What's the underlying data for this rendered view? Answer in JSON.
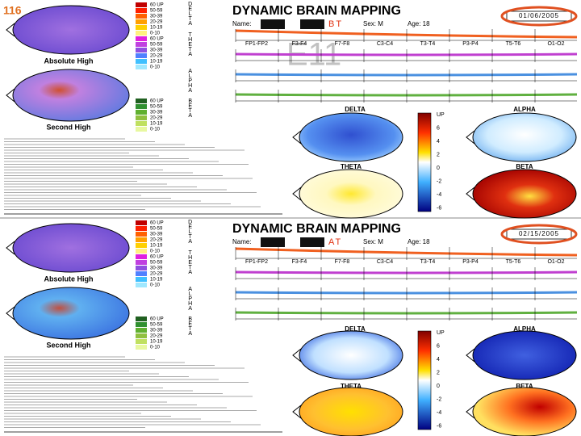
{
  "slide_label": "116",
  "watermark": "E11",
  "panels": [
    {
      "title": "DYNAMIC BRAIN MAPPING",
      "name_label": "Name:",
      "tag": "BT",
      "sex": "Sex: M",
      "age": "Age: 18",
      "date": "01/06/2005",
      "left_maps": [
        "Absolute High",
        "Second High"
      ],
      "maps": [
        "DELTA",
        "ALPHA",
        "THETA",
        "BETA"
      ]
    },
    {
      "title": "DYNAMIC BRAIN MAPPING",
      "name_label": "Name:",
      "tag": "AT",
      "sex": "Sex: M",
      "age": "Age: 18",
      "date": "02/15/2005",
      "left_maps": [
        "Absolute High",
        "Second High"
      ],
      "maps": [
        "DELTA",
        "ALPHA",
        "THETA",
        "BETA"
      ]
    }
  ],
  "bands": [
    "DELTA",
    "THETA",
    "ALPHA",
    "BETA"
  ],
  "legend_ranges": [
    "60 UP",
    "50-59",
    "30-39",
    "20-29",
    "10-19",
    "0-10"
  ],
  "channels": [
    "FP1-FP2",
    "F3-F4",
    "F7-F8",
    "C3-C4",
    "T3-T4",
    "P3-P4",
    "T5-T6",
    "O1-O2"
  ],
  "scale_labels": [
    "UP",
    "6",
    "4",
    "2",
    "0",
    "-2",
    "-4",
    "-6"
  ]
}
